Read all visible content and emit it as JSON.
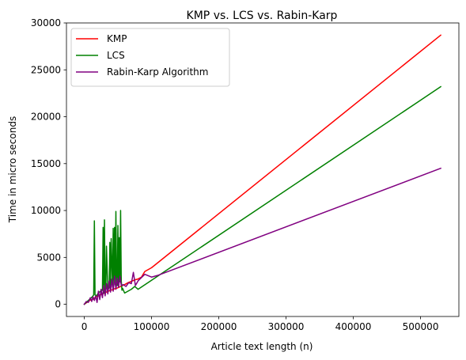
{
  "chart_data": {
    "type": "line",
    "title": "KMP vs. LCS vs. Rabin-Karp",
    "xlabel": "Article text length (n)",
    "ylabel": "Time in micro seconds",
    "xlim": [
      -26500,
      557000
    ],
    "ylim": [
      -1300,
      30000
    ],
    "xticks": [
      0,
      100000,
      200000,
      300000,
      400000,
      500000
    ],
    "yticks": [
      0,
      5000,
      10000,
      15000,
      20000,
      25000,
      30000
    ],
    "grid": false,
    "legend_position": "top-left",
    "series": [
      {
        "name": "KMP",
        "color": "#ff0000",
        "x": [
          0,
          3000,
          6000,
          9000,
          12000,
          15000,
          18000,
          21000,
          24000,
          27000,
          30000,
          33000,
          36000,
          39000,
          42000,
          45000,
          48000,
          51000,
          54000,
          57000,
          60000,
          65000,
          70000,
          75000,
          80000,
          85000,
          90000,
          100000,
          107000,
          530000
        ],
        "y": [
          0,
          150,
          300,
          450,
          500,
          650,
          800,
          900,
          1000,
          1100,
          1200,
          1300,
          1400,
          1500,
          1550,
          1650,
          1700,
          1800,
          1900,
          2000,
          2100,
          2300,
          2450,
          2600,
          2700,
          2900,
          3500,
          3900,
          4300,
          28700
        ]
      },
      {
        "name": "LCS",
        "color": "#008000",
        "x": [
          0,
          3000,
          6000,
          9000,
          12000,
          14000,
          15000,
          16000,
          18000,
          21000,
          24000,
          27000,
          28000,
          29000,
          30000,
          31000,
          32000,
          33000,
          35000,
          37000,
          38000,
          39000,
          40000,
          42000,
          43000,
          44000,
          45000,
          46000,
          47000,
          48000,
          49000,
          50000,
          51000,
          52000,
          53000,
          54000,
          55000,
          56000,
          57000,
          60000,
          65000,
          70000,
          75000,
          80000,
          530000
        ],
        "y": [
          0,
          200,
          400,
          600,
          800,
          1000,
          8900,
          1000,
          900,
          1200,
          1400,
          1500,
          8200,
          1200,
          9000,
          1600,
          1400,
          6200,
          1500,
          1800,
          6600,
          1700,
          7000,
          1900,
          8100,
          2000,
          8200,
          2100,
          9900,
          2200,
          2000,
          8400,
          2300,
          7100,
          2400,
          10000,
          2500,
          1500,
          1700,
          1200,
          1400,
          1600,
          1900,
          1600,
          23200
        ]
      },
      {
        "name": "Rabin-Karp Algorithm",
        "color": "#800080",
        "x": [
          0,
          3000,
          6000,
          9000,
          11000,
          13000,
          15000,
          17000,
          19000,
          21000,
          23000,
          25000,
          27000,
          29000,
          31000,
          33000,
          35000,
          37000,
          39000,
          41000,
          43000,
          45000,
          47000,
          49000,
          51000,
          53000,
          55000,
          58000,
          62000,
          66000,
          70000,
          73000,
          76000,
          80000,
          90000,
          100000,
          110000,
          530000
        ],
        "y": [
          0,
          300,
          200,
          700,
          300,
          800,
          400,
          900,
          200,
          1400,
          500,
          1600,
          700,
          2000,
          900,
          2200,
          1100,
          2500,
          1300,
          2700,
          1400,
          3000,
          1600,
          2800,
          1800,
          3000,
          2000,
          2100,
          1900,
          2300,
          2200,
          3400,
          2000,
          2500,
          3200,
          2900,
          3100,
          14500
        ]
      }
    ]
  }
}
